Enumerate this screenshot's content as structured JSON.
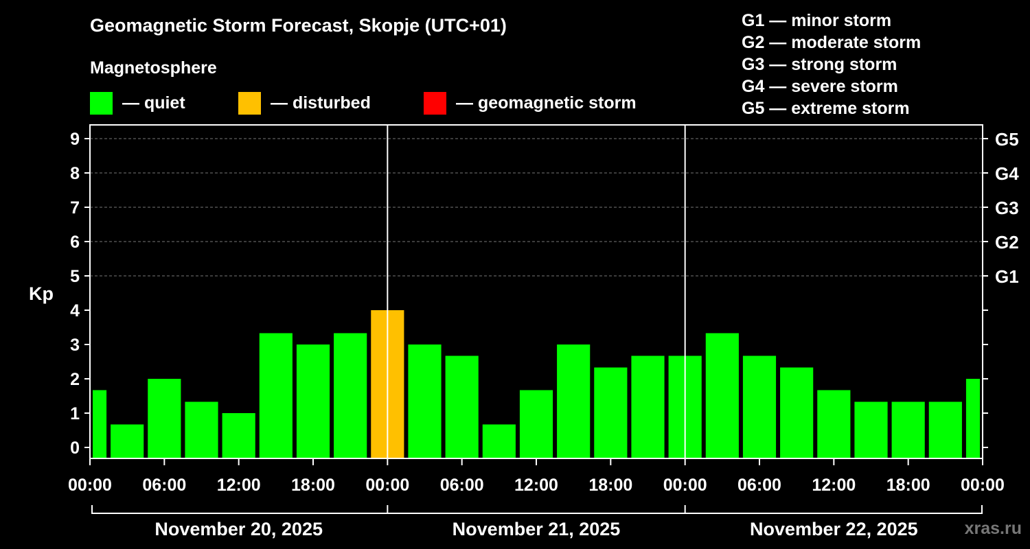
{
  "title": "Geomagnetic Storm Forecast, Skopje (UTC+01)",
  "legend": {
    "heading": "Magnetosphere",
    "items": [
      {
        "label": "— quiet",
        "color": "#00ff00"
      },
      {
        "label": "— disturbed",
        "color": "#ffc000"
      },
      {
        "label": "— geomagnetic storm",
        "color": "#ff0000"
      }
    ]
  },
  "storm_scale": [
    "G1 — minor storm",
    "G2 — moderate storm",
    "G3 — strong storm",
    "G4 — severe storm",
    "G5 — extreme storm"
  ],
  "watermark": "xras.ru",
  "chart_data": {
    "type": "bar",
    "ylabel": "Kp",
    "ylim": [
      0,
      9
    ],
    "y_ticks": [
      0,
      1,
      2,
      3,
      4,
      5,
      6,
      7,
      8,
      9
    ],
    "right_axis_labels": [
      {
        "kp": 5,
        "label": "G1"
      },
      {
        "kp": 6,
        "label": "G2"
      },
      {
        "kp": 7,
        "label": "G3"
      },
      {
        "kp": 8,
        "label": "G4"
      },
      {
        "kp": 9,
        "label": "G5"
      }
    ],
    "x_tick_labels": [
      "00:00",
      "06:00",
      "12:00",
      "18:00",
      "00:00",
      "06:00",
      "12:00",
      "18:00",
      "00:00",
      "06:00",
      "12:00",
      "18:00",
      "00:00"
    ],
    "day_labels": [
      "November 20, 2025",
      "November 21, 2025",
      "November 22, 2025"
    ],
    "grid": true,
    "bars": [
      {
        "start": "2025-11-20 00:00",
        "kp": 1.67,
        "status": "quiet"
      },
      {
        "start": "2025-11-20 03:00",
        "kp": 0.67,
        "status": "quiet"
      },
      {
        "start": "2025-11-20 06:00",
        "kp": 2.0,
        "status": "quiet"
      },
      {
        "start": "2025-11-20 09:00",
        "kp": 1.33,
        "status": "quiet"
      },
      {
        "start": "2025-11-20 12:00",
        "kp": 1.0,
        "status": "quiet"
      },
      {
        "start": "2025-11-20 15:00",
        "kp": 3.33,
        "status": "quiet"
      },
      {
        "start": "2025-11-20 18:00",
        "kp": 3.0,
        "status": "quiet"
      },
      {
        "start": "2025-11-20 21:00",
        "kp": 3.33,
        "status": "quiet"
      },
      {
        "start": "2025-11-21 00:00",
        "kp": 4.0,
        "status": "disturbed"
      },
      {
        "start": "2025-11-21 03:00",
        "kp": 3.0,
        "status": "quiet"
      },
      {
        "start": "2025-11-21 06:00",
        "kp": 2.67,
        "status": "quiet"
      },
      {
        "start": "2025-11-21 09:00",
        "kp": 0.67,
        "status": "quiet"
      },
      {
        "start": "2025-11-21 12:00",
        "kp": 1.67,
        "status": "quiet"
      },
      {
        "start": "2025-11-21 15:00",
        "kp": 3.0,
        "status": "quiet"
      },
      {
        "start": "2025-11-21 18:00",
        "kp": 2.33,
        "status": "quiet"
      },
      {
        "start": "2025-11-21 21:00",
        "kp": 2.67,
        "status": "quiet"
      },
      {
        "start": "2025-11-22 00:00",
        "kp": 2.67,
        "status": "quiet"
      },
      {
        "start": "2025-11-22 03:00",
        "kp": 3.33,
        "status": "quiet"
      },
      {
        "start": "2025-11-22 06:00",
        "kp": 2.67,
        "status": "quiet"
      },
      {
        "start": "2025-11-22 09:00",
        "kp": 2.33,
        "status": "quiet"
      },
      {
        "start": "2025-11-22 12:00",
        "kp": 1.67,
        "status": "quiet"
      },
      {
        "start": "2025-11-22 15:00",
        "kp": 1.33,
        "status": "quiet"
      },
      {
        "start": "2025-11-22 18:00",
        "kp": 1.33,
        "status": "quiet"
      },
      {
        "start": "2025-11-22 21:00",
        "kp": 1.33,
        "status": "quiet"
      },
      {
        "start": "2025-11-23 00:00",
        "kp": 2.0,
        "status": "quiet"
      }
    ]
  }
}
